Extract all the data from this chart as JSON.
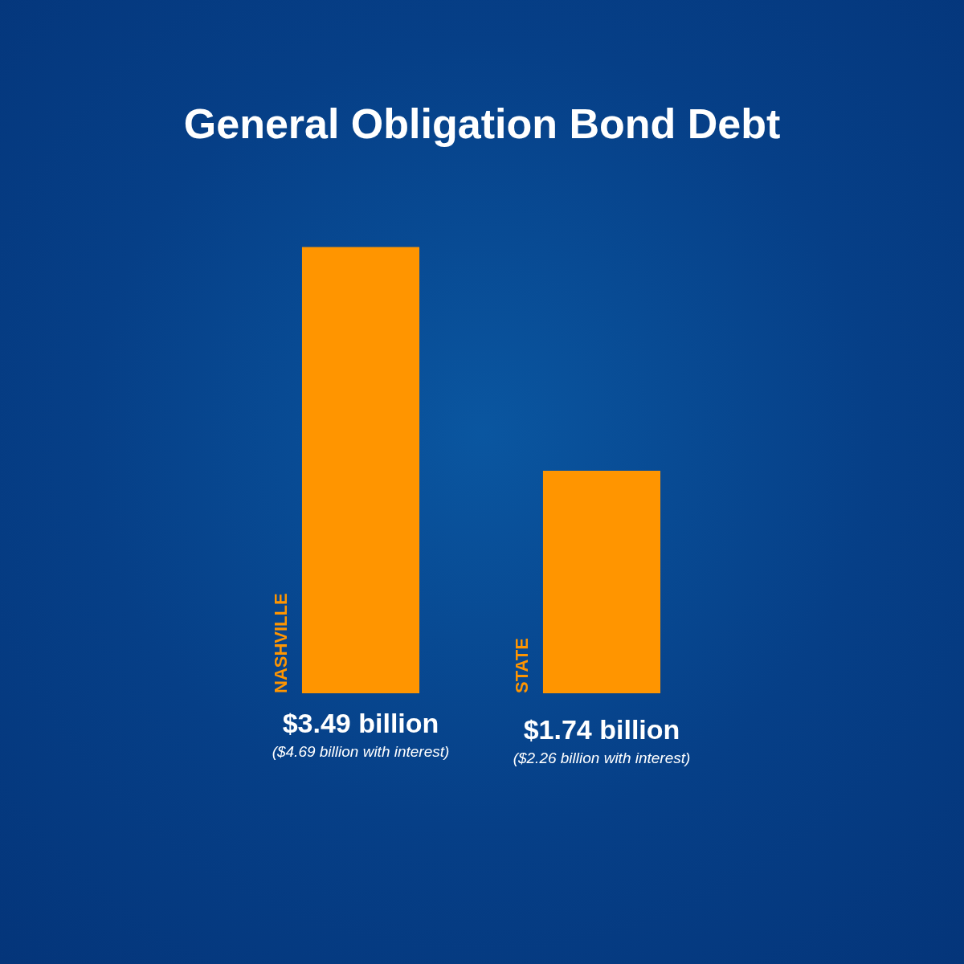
{
  "chart_data": {
    "type": "bar",
    "title": "General Obligation Bond Debt",
    "categories": [
      "NASHVILLE",
      "STATE"
    ],
    "values": [
      3.49,
      1.74
    ],
    "color": "#ff9500",
    "value_labels": [
      "$3.49 billion",
      "$1.74 billion"
    ],
    "annotations": [
      "($4.69 billion with interest)",
      "($2.26 billion with interest)"
    ]
  }
}
